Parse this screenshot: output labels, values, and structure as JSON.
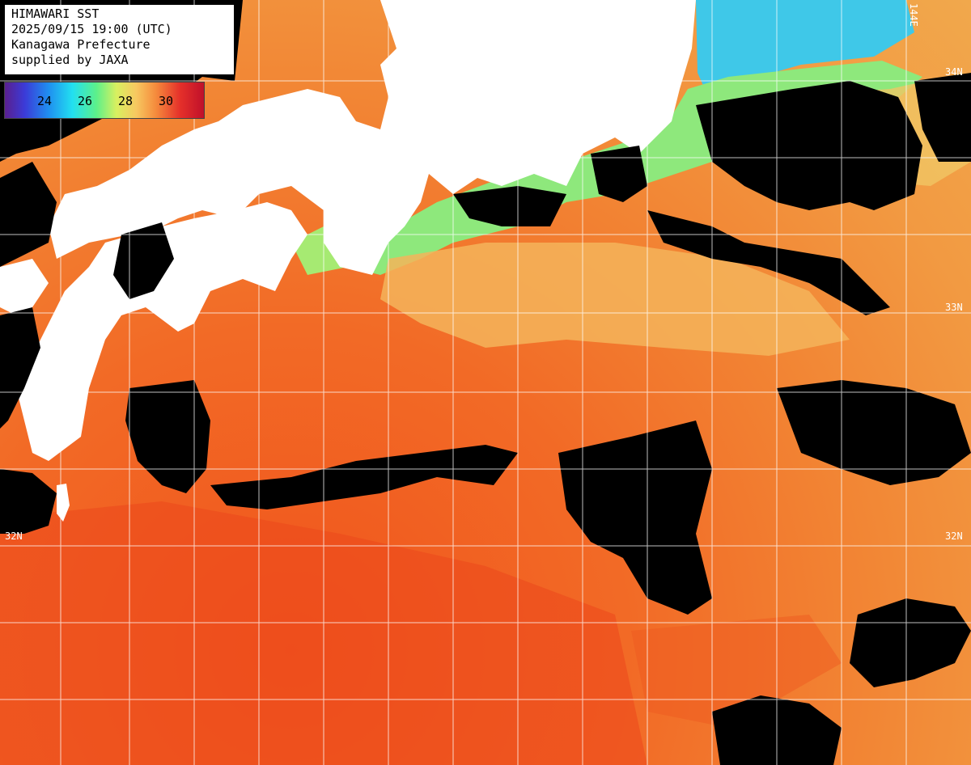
{
  "header": {
    "line1": "HIMAWARI SST",
    "line2": "2025/09/15 19:00 (UTC)",
    "line3": "Kanagawa Prefecture",
    "line4": "supplied by JAXA"
  },
  "colorbar": {
    "ticks": [
      "24",
      "26",
      "28",
      "30"
    ],
    "colors": [
      "#5a1f8e",
      "#3b3bd8",
      "#1f8ff0",
      "#22e0f0",
      "#5cf08a",
      "#d8f060",
      "#f7c860",
      "#f58a3c",
      "#e5302a",
      "#c0102a"
    ]
  },
  "grid_labels": {
    "lon_top_right": "144E",
    "lat_34": "34N",
    "lat_33": "33N",
    "lat_32_left": "32N",
    "lat_32_right": "32N"
  },
  "colors": {
    "land": "#ffffff",
    "cloud": "#000000",
    "warm_sea": "#f26a26",
    "cool_sea": "#7ee87a",
    "cold_sea": "#3fc8e8"
  }
}
